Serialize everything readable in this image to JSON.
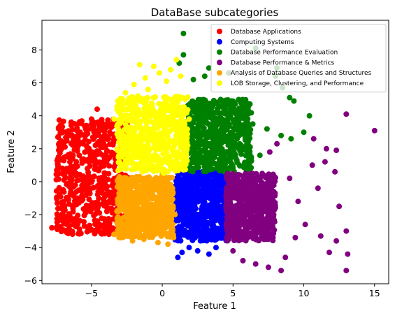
{
  "chart_data": {
    "type": "scatter",
    "title": "DataBase subcategories",
    "xlabel": "Feature 1",
    "ylabel": "Feature 2",
    "xlim": [
      -8.5,
      16.0
    ],
    "ylim": [
      -6.2,
      9.8
    ],
    "x_ticks": [
      -5,
      0,
      5,
      10,
      15
    ],
    "y_ticks": [
      -6,
      -4,
      -2,
      0,
      2,
      4,
      6,
      8
    ],
    "grid": false,
    "legend_position": "upper right",
    "series": [
      {
        "name": "Database Applications",
        "color": "#ff0000",
        "core_region": {
          "x": [
            -7.5,
            -2.4
          ],
          "y": [
            -3.2,
            3.8
          ]
        },
        "points": [
          [
            -7.8,
            -2.8
          ],
          [
            -7.2,
            -2.3
          ],
          [
            -6.9,
            -1.5
          ],
          [
            -7.0,
            -0.5
          ],
          [
            -6.7,
            0.8
          ],
          [
            -6.3,
            1.6
          ],
          [
            -5.6,
            2.4
          ],
          [
            -5.3,
            3.2
          ],
          [
            -5.0,
            3.8
          ],
          [
            -4.6,
            4.4
          ],
          [
            -4.2,
            3.5
          ],
          [
            -3.8,
            2.6
          ],
          [
            -3.2,
            1.8
          ],
          [
            -3.6,
            -0.8
          ],
          [
            -3.0,
            -2.8
          ],
          [
            -3.4,
            -3.2
          ],
          [
            -4.6,
            -2.9
          ],
          [
            -5.5,
            -2.7
          ],
          [
            -6.2,
            -2.4
          ],
          [
            -6.0,
            -1.0
          ],
          [
            -4.3,
            0.2
          ],
          [
            -5.8,
            3.0
          ]
        ]
      },
      {
        "name": "Computing Systems",
        "color": "#0000ff",
        "core_region": {
          "x": [
            0.9,
            4.6
          ],
          "y": [
            -3.6,
            0.6
          ]
        },
        "points": [
          [
            1.1,
            -4.6
          ],
          [
            1.4,
            -4.3
          ],
          [
            1.9,
            -4.0
          ],
          [
            2.5,
            -4.2
          ],
          [
            3.3,
            -4.4
          ],
          [
            3.8,
            -4.0
          ],
          [
            4.5,
            -3.5
          ],
          [
            4.3,
            -2.0
          ],
          [
            4.5,
            -0.6
          ],
          [
            3.6,
            0.6
          ],
          [
            2.2,
            0.7
          ],
          [
            1.2,
            0.2
          ],
          [
            0.9,
            -1.2
          ],
          [
            1.3,
            -2.8
          ]
        ]
      },
      {
        "name": "Database Performance Evaluation",
        "color": "#008000",
        "core_region": {
          "x": [
            1.7,
            6.3
          ],
          "y": [
            0.6,
            5.0
          ]
        },
        "points": [
          [
            1.5,
            9.0
          ],
          [
            1.5,
            7.7
          ],
          [
            1.2,
            7.2
          ],
          [
            3.3,
            6.9
          ],
          [
            4.7,
            6.6
          ],
          [
            6.6,
            8.1
          ],
          [
            8.1,
            6.9
          ],
          [
            8.0,
            6.4
          ],
          [
            8.5,
            5.7
          ],
          [
            9.0,
            5.1
          ],
          [
            9.3,
            4.9
          ],
          [
            10.4,
            4.0
          ],
          [
            10.0,
            3.0
          ],
          [
            9.1,
            2.6
          ],
          [
            8.4,
            2.8
          ],
          [
            7.4,
            3.2
          ],
          [
            6.9,
            1.6
          ],
          [
            6.1,
            0.8
          ],
          [
            5.3,
            0.4
          ],
          [
            4.4,
            0.6
          ],
          [
            2.2,
            6.2
          ],
          [
            3.0,
            6.4
          ],
          [
            1.8,
            3.0
          ],
          [
            6.4,
            3.5
          ]
        ]
      },
      {
        "name": "Database Performance & Metrics",
        "color": "#800080",
        "core_region": {
          "x": [
            4.5,
            8.0
          ],
          "y": [
            -3.6,
            0.5
          ]
        },
        "points": [
          [
            15.0,
            3.1
          ],
          [
            13.0,
            4.1
          ],
          [
            10.7,
            2.6
          ],
          [
            11.6,
            2.0
          ],
          [
            12.3,
            1.9
          ],
          [
            10.6,
            1.0
          ],
          [
            11.5,
            1.2
          ],
          [
            12.2,
            0.6
          ],
          [
            11.0,
            -0.4
          ],
          [
            12.5,
            -1.5
          ],
          [
            13.0,
            -3.0
          ],
          [
            12.3,
            -3.6
          ],
          [
            13.1,
            -4.4
          ],
          [
            13.0,
            -5.4
          ],
          [
            11.8,
            -4.3
          ],
          [
            11.2,
            -3.3
          ],
          [
            10.1,
            -2.6
          ],
          [
            9.4,
            -3.4
          ],
          [
            8.7,
            -4.6
          ],
          [
            8.4,
            -5.4
          ],
          [
            7.5,
            -5.2
          ],
          [
            6.6,
            -5.0
          ],
          [
            5.7,
            -4.8
          ],
          [
            5.0,
            -4.2
          ],
          [
            8.1,
            2.3
          ],
          [
            7.6,
            1.8
          ],
          [
            9.0,
            0.2
          ],
          [
            9.6,
            -1.2
          ]
        ]
      },
      {
        "name": "Analysis of Database Queries and Structures",
        "color": "#ffa500",
        "core_region": {
          "x": [
            -3.2,
            0.8
          ],
          "y": [
            -3.4,
            0.3
          ]
        },
        "points": [
          [
            -3.4,
            -3.2
          ],
          [
            -3.0,
            -3.4
          ],
          [
            -2.1,
            -3.6
          ],
          [
            -1.3,
            -3.5
          ],
          [
            -0.3,
            -3.7
          ],
          [
            0.4,
            -3.8
          ],
          [
            0.8,
            -3.4
          ],
          [
            0.9,
            -2.0
          ],
          [
            0.7,
            -0.5
          ],
          [
            0.0,
            0.4
          ],
          [
            -1.6,
            0.3
          ],
          [
            -2.5,
            -0.6
          ],
          [
            -3.2,
            -1.8
          ]
        ]
      },
      {
        "name": "LOB Storage, Clustering, and Performance",
        "color": "#ffff00",
        "core_region": {
          "x": [
            -3.2,
            1.8
          ],
          "y": [
            0.6,
            5.2
          ]
        },
        "points": [
          [
            1.0,
            7.4
          ],
          [
            -0.6,
            7.0
          ],
          [
            -1.6,
            7.1
          ],
          [
            -0.2,
            6.6
          ],
          [
            0.3,
            6.1
          ],
          [
            -1.2,
            6.3
          ],
          [
            -2.0,
            5.9
          ],
          [
            -2.6,
            5.4
          ],
          [
            -2.8,
            4.4
          ],
          [
            -3.4,
            3.8
          ],
          [
            -3.0,
            2.6
          ],
          [
            -2.4,
            1.2
          ],
          [
            -1.4,
            0.6
          ],
          [
            0.1,
            0.5
          ],
          [
            1.3,
            0.8
          ],
          [
            1.8,
            2.2
          ],
          [
            1.9,
            3.8
          ],
          [
            1.6,
            5.0
          ],
          [
            1.3,
            6.4
          ],
          [
            0.6,
            6.8
          ],
          [
            -1.0,
            5.6
          ]
        ]
      }
    ]
  }
}
